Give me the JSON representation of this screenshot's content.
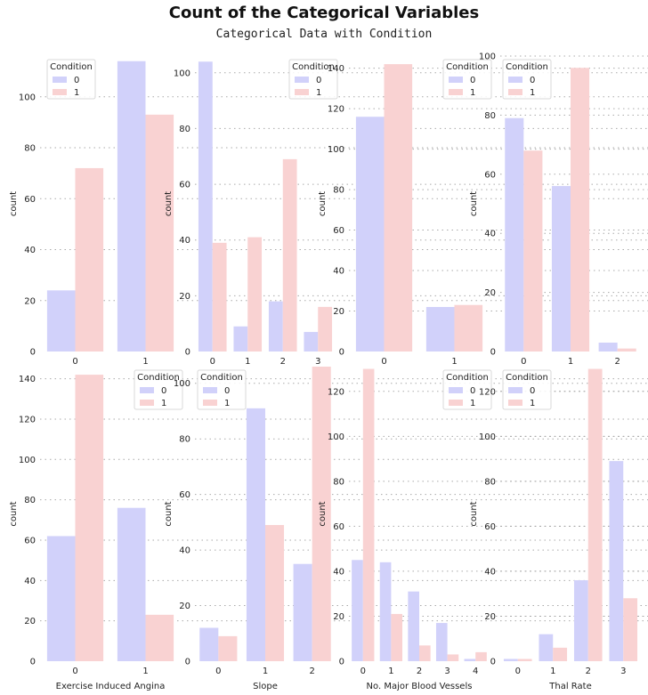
{
  "title": "Count of the Categorical Variables",
  "subtitle": "Categorical Data with Condition",
  "colors": {
    "condition_0": "#d1d1fa",
    "condition_1": "#f9d2d2",
    "grid": "#aaaaaa",
    "text": "#222222"
  },
  "chart_data": [
    {
      "type": "bar",
      "row": 0,
      "col": 0,
      "categories": [
        "0",
        "1"
      ],
      "xlabel": "",
      "ylabel": "count",
      "ylim": [
        0,
        116
      ],
      "yticks": [
        0,
        20,
        40,
        60,
        80,
        100
      ],
      "legend": {
        "title": "Condition",
        "entries": [
          "0",
          "1"
        ],
        "placement": "top-center"
      },
      "series": [
        {
          "name": "0",
          "values": [
            24,
            114
          ]
        },
        {
          "name": "1",
          "values": [
            72,
            93
          ]
        }
      ]
    },
    {
      "type": "bar",
      "row": 0,
      "col": 1,
      "categories": [
        "0",
        "1",
        "2",
        "3"
      ],
      "xlabel": "",
      "ylabel": "count",
      "ylim": [
        0,
        106
      ],
      "yticks": [
        0,
        20,
        40,
        60,
        80,
        100
      ],
      "legend": {
        "title": "Condition",
        "entries": [
          "0",
          "1"
        ],
        "placement": "top-right"
      },
      "series": [
        {
          "name": "0",
          "values": [
            104,
            9,
            18,
            7
          ]
        },
        {
          "name": "1",
          "values": [
            39,
            41,
            69,
            16
          ]
        }
      ]
    },
    {
      "type": "bar",
      "row": 0,
      "col": 2,
      "categories": [
        "0",
        "1"
      ],
      "xlabel": "",
      "ylabel": "count",
      "ylim": [
        0,
        146
      ],
      "yticks": [
        0,
        20,
        40,
        60,
        80,
        100,
        120,
        140
      ],
      "legend": {
        "title": "Condition",
        "entries": [
          "0",
          "1"
        ],
        "placement": "top-right"
      },
      "series": [
        {
          "name": "0",
          "values": [
            116,
            22
          ]
        },
        {
          "name": "1",
          "values": [
            142,
            23
          ]
        }
      ]
    },
    {
      "type": "bar",
      "row": 0,
      "col": 3,
      "categories": [
        "0",
        "1",
        "2"
      ],
      "xlabel": "",
      "ylabel": "count",
      "ylim": [
        0,
        100
      ],
      "yticks": [
        0,
        20,
        40,
        60,
        80,
        100
      ],
      "legend": {
        "title": "Condition",
        "entries": [
          "0",
          "1"
        ],
        "placement": "top-left"
      },
      "series": [
        {
          "name": "0",
          "values": [
            79,
            56,
            3
          ]
        },
        {
          "name": "1",
          "values": [
            68,
            96,
            1
          ]
        }
      ]
    },
    {
      "type": "bar",
      "row": 1,
      "col": 0,
      "categories": [
        "0",
        "1"
      ],
      "xlabel": "Exercise Induced Angina",
      "ylabel": "count",
      "ylim": [
        0,
        146
      ],
      "yticks": [
        0,
        20,
        40,
        60,
        80,
        100,
        120,
        140
      ],
      "legend": {
        "title": "Condition",
        "entries": [
          "0",
          "1"
        ],
        "placement": "top-right"
      },
      "series": [
        {
          "name": "0",
          "values": [
            62,
            76
          ]
        },
        {
          "name": "1",
          "values": [
            142,
            23
          ]
        }
      ]
    },
    {
      "type": "bar",
      "row": 1,
      "col": 1,
      "categories": [
        "0",
        "1",
        "2"
      ],
      "xlabel": "Slope",
      "ylabel": "count",
      "ylim": [
        0,
        106
      ],
      "yticks": [
        0,
        20,
        40,
        60,
        80,
        100
      ],
      "legend": {
        "title": "Condition",
        "entries": [
          "0",
          "1"
        ],
        "placement": "top-left"
      },
      "series": [
        {
          "name": "0",
          "values": [
            12,
            91,
            35
          ]
        },
        {
          "name": "1",
          "values": [
            9,
            49,
            106
          ]
        }
      ]
    },
    {
      "type": "bar",
      "row": 1,
      "col": 2,
      "categories": [
        "0",
        "1",
        "2",
        "3",
        "4"
      ],
      "xlabel": "No. Major Blood Vessels",
      "ylabel": "count",
      "ylim": [
        0,
        131
      ],
      "yticks": [
        0,
        20,
        40,
        60,
        80,
        100,
        120
      ],
      "legend": {
        "title": "Condition",
        "entries": [
          "0",
          "1"
        ],
        "placement": "top-right"
      },
      "series": [
        {
          "name": "0",
          "values": [
            45,
            44,
            31,
            17,
            1
          ]
        },
        {
          "name": "1",
          "values": [
            130,
            21,
            7,
            3,
            4
          ]
        }
      ]
    },
    {
      "type": "bar",
      "row": 1,
      "col": 3,
      "categories": [
        "0",
        "1",
        "2",
        "3"
      ],
      "xlabel": "Thal Rate",
      "ylabel": "count",
      "ylim": [
        0,
        131
      ],
      "yticks": [
        0,
        20,
        40,
        60,
        80,
        100,
        120
      ],
      "legend": {
        "title": "Condition",
        "entries": [
          "0",
          "1"
        ],
        "placement": "top-left"
      },
      "series": [
        {
          "name": "0",
          "values": [
            1,
            12,
            36,
            89
          ]
        },
        {
          "name": "1",
          "values": [
            1,
            6,
            130,
            28
          ]
        }
      ]
    }
  ]
}
